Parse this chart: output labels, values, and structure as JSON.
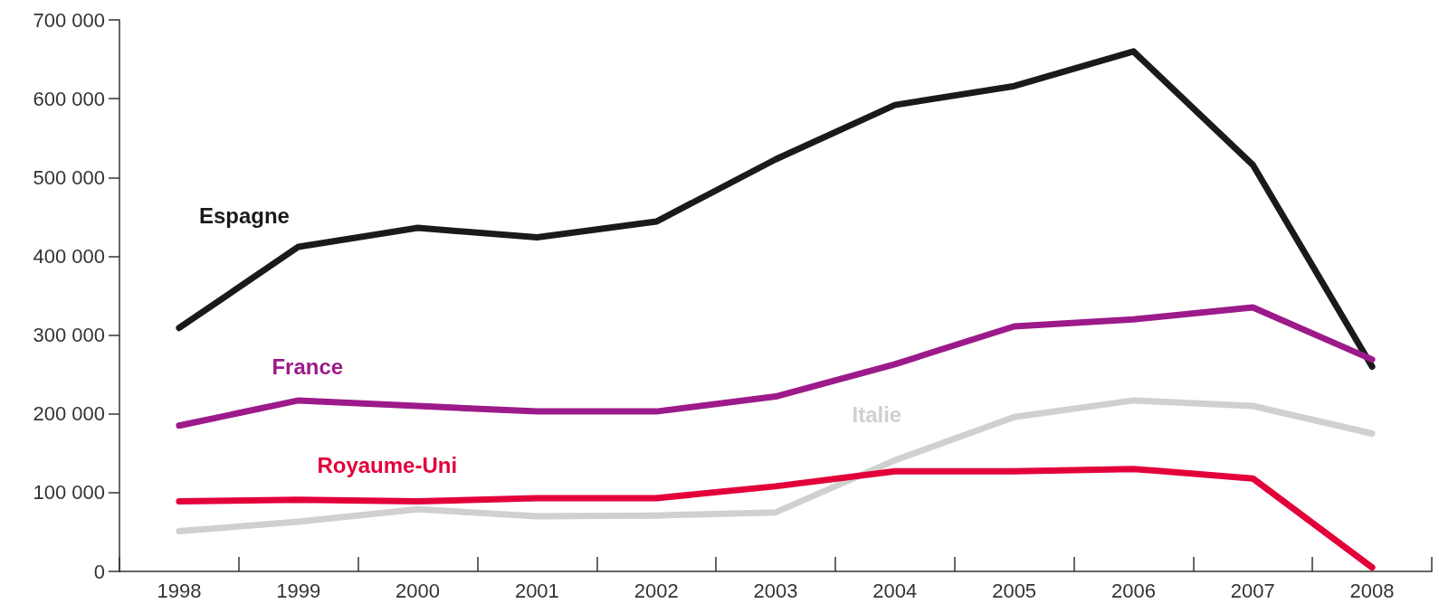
{
  "chart_data": {
    "type": "line",
    "categories": [
      "1998",
      "1999",
      "2000",
      "2001",
      "2002",
      "2003",
      "2004",
      "2005",
      "2006",
      "2007",
      "2008"
    ],
    "series": [
      {
        "name": "Espagne",
        "color": "#1a1a1a",
        "values": [
          309000,
          412000,
          436000,
          424000,
          444000,
          523000,
          592000,
          616000,
          660000,
          516000,
          260000
        ]
      },
      {
        "name": "France",
        "color": "#9c1a8a",
        "values": [
          185000,
          217000,
          210000,
          203000,
          203000,
          222000,
          263000,
          311000,
          320000,
          335000,
          269000
        ]
      },
      {
        "name": "Italie",
        "color": "#d0d0d0",
        "values": [
          51000,
          63000,
          79000,
          70000,
          71000,
          75000,
          141000,
          196000,
          217000,
          210000,
          175000
        ]
      },
      {
        "name": "Royaume-Uni",
        "color": "#e3003a",
        "values": [
          89000,
          91000,
          89000,
          93000,
          93000,
          108000,
          127000,
          127000,
          130000,
          118000,
          5000
        ]
      }
    ],
    "ylim": [
      0,
      700000
    ],
    "yticks": [
      0,
      {
        "value": 100000,
        "label": "100 000"
      },
      {
        "value": 200000,
        "label": "200 000"
      },
      {
        "value": 300000,
        "label": "300 000"
      },
      {
        "value": 400000,
        "label": "400 000"
      },
      {
        "value": 500000,
        "label": "500 000"
      },
      {
        "value": 600000,
        "label": "600 000"
      },
      {
        "value": 700000,
        "label": "700 000"
      }
    ],
    "grid": false,
    "legend": false,
    "marker": "none",
    "line_style": "solid"
  }
}
